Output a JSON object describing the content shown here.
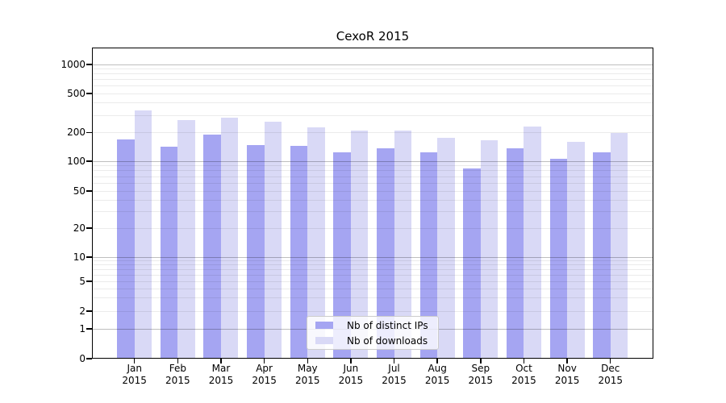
{
  "title": "CexoR 2015",
  "chart_data": {
    "type": "bar",
    "title": "CexoR 2015",
    "categories": [
      "Jan",
      "Feb",
      "Mar",
      "Apr",
      "May",
      "Jun",
      "Jul",
      "Aug",
      "Sep",
      "Oct",
      "Nov",
      "Dec"
    ],
    "category_year": "2015",
    "series": [
      {
        "name": "Nb of distinct IPs",
        "color": "#a5a5f2",
        "values": [
          168,
          143,
          190,
          148,
          146,
          124,
          137,
          123,
          84,
          138,
          107,
          123
        ]
      },
      {
        "name": "Nb of downloads",
        "color": "#d9d9f6",
        "values": [
          335,
          270,
          282,
          256,
          225,
          210,
          210,
          177,
          165,
          232,
          160,
          200
        ]
      }
    ],
    "yticks": [
      0,
      1,
      2,
      5,
      10,
      20,
      50,
      100,
      200,
      500,
      1000
    ],
    "xlabel": "",
    "ylabel": "",
    "scale": "symlog",
    "grid": true,
    "legend_position": "lower-center",
    "colors": {
      "grid_major": "#bfbfbf",
      "grid_minor": "#ebebeb",
      "spine": "#000000",
      "background": "#ffffff"
    }
  }
}
